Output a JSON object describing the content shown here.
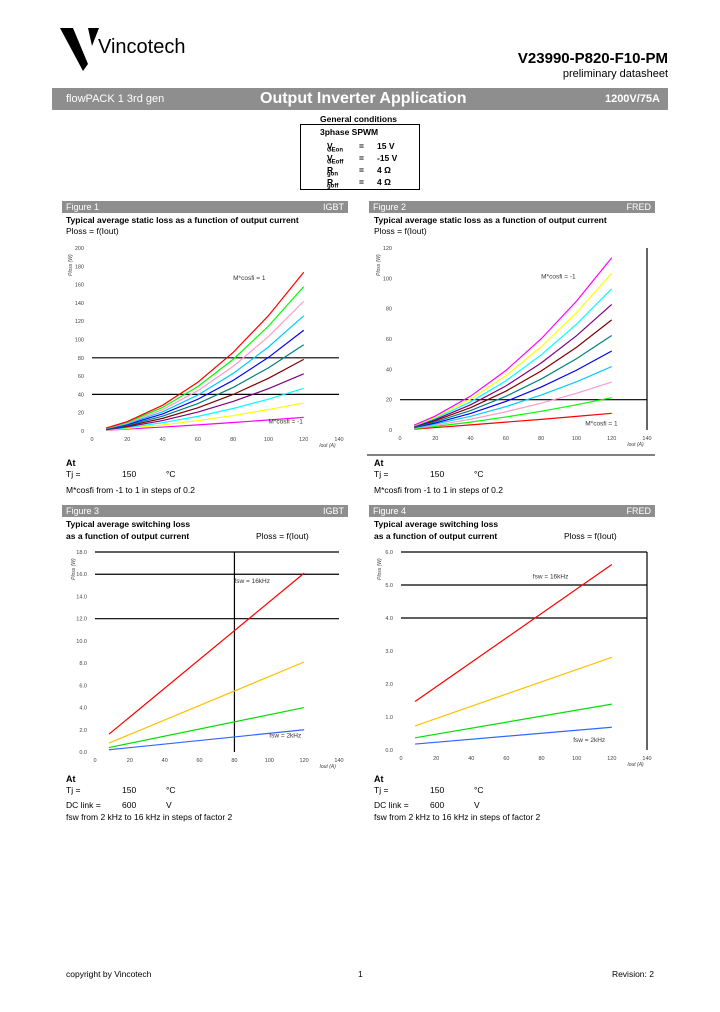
{
  "header": {
    "company": "Vincotech",
    "part_number": "V23990-P820-F10-PM",
    "doc_status": "preliminary datasheet",
    "bar_left": "flowPACK 1 3rd gen",
    "bar_title": "Output Inverter Application",
    "bar_right": "1200V/75A"
  },
  "conditions": {
    "title": "General conditions",
    "mode": "3phase SPWM",
    "rows": [
      {
        "sym": "V",
        "sub": "GEon",
        "eq": "=",
        "val": "15 V"
      },
      {
        "sym": "V",
        "sub": "GEoff",
        "eq": "=",
        "val": "-15 V"
      },
      {
        "sym": "R",
        "sub": "gon",
        "eq": "=",
        "val": "4 Ω"
      },
      {
        "sym": "R",
        "sub": "goff",
        "eq": "=",
        "val": "4 Ω"
      }
    ]
  },
  "figures": [
    {
      "label": "Figure 1",
      "tag": "IGBT",
      "title1": "Typical average static loss as a function of output current",
      "title2": "",
      "formula": "Ploss = f(Iout)",
      "at": "At",
      "cond1_label": "Tj =",
      "cond1_val": "150",
      "cond1_unit": "°C",
      "cond2_label": "",
      "cond2_val": "",
      "cond2_unit": "",
      "note": "M*cosfi from -1 to 1 in steps of 0.2"
    },
    {
      "label": "Figure 2",
      "tag": "FRED",
      "title1": "Typical average static loss as a function of output current",
      "title2": "",
      "formula": "Ploss = f(Iout)",
      "at": "At",
      "cond1_label": "Tj =",
      "cond1_val": "150",
      "cond1_unit": "°C",
      "cond2_label": "",
      "cond2_val": "",
      "cond2_unit": "",
      "note": "M*cosfi from -1 to 1 in steps of 0.2"
    },
    {
      "label": "Figure 3",
      "tag": "IGBT",
      "title1": "Typical average switching loss",
      "title2": "as a function of output current",
      "formula": "Ploss = f(Iout)",
      "at": "At",
      "cond1_label": "Tj =",
      "cond1_val": "150",
      "cond1_unit": "°C",
      "cond2_label": "DC link =",
      "cond2_val": "600",
      "cond2_unit": "V",
      "note": "fsw from 2 kHz to 16 kHz in steps of factor 2"
    },
    {
      "label": "Figure 4",
      "tag": "FRED",
      "title1": "Typical average switching loss",
      "title2": "as a function of output current",
      "formula": "Ploss = f(Iout)",
      "at": "At",
      "cond1_label": "Tj =",
      "cond1_val": "150",
      "cond1_unit": "°C",
      "cond2_label": "DC link =",
      "cond2_val": "600",
      "cond2_unit": "V",
      "note": "fsw from 2 kHz to 16 kHz in steps of factor 2"
    }
  ],
  "chart_data": [
    {
      "type": "line",
      "xlabel": "Iout (A)",
      "ylabel": "Ploss (W)",
      "xlim": [
        0,
        140
      ],
      "ylim": [
        0,
        200
      ],
      "xticks": [
        "0",
        "20",
        "40",
        "60",
        "80",
        "100",
        "120",
        "140"
      ],
      "yticks": [
        "0",
        "20",
        "40",
        "60",
        "80",
        "100",
        "120",
        "140",
        "160",
        "180",
        "200"
      ],
      "reference_lines": {
        "h": [
          40,
          80
        ],
        "v": []
      },
      "annotations": [
        {
          "text": "M*cosfi = 1",
          "x": 80,
          "y": 165
        },
        {
          "text": "M*cosfi = -1",
          "x": 100,
          "y": 8
        }
      ],
      "x": [
        8,
        20,
        40,
        60,
        80,
        100,
        120
      ],
      "series": [
        {
          "color": "#ff00ff",
          "values": [
            0.8,
            2.1,
            4.3,
            6.7,
            9.3,
            12.0,
            14.9
          ]
        },
        {
          "color": "#ffff00",
          "values": [
            1.1,
            2.9,
            6.7,
            11.4,
            16.9,
            23.4,
            30.7
          ]
        },
        {
          "color": "#00ffff",
          "values": [
            1.3,
            3.7,
            9.1,
            16.0,
            24.6,
            34.8,
            46.6
          ]
        },
        {
          "color": "#800080",
          "values": [
            1.5,
            4.6,
            11.4,
            20.7,
            32.3,
            46.2,
            62.5
          ]
        },
        {
          "color": "#800000",
          "values": [
            1.8,
            5.4,
            13.8,
            25.3,
            39.9,
            57.6,
            78.3
          ]
        },
        {
          "color": "#008080",
          "values": [
            2.0,
            6.2,
            16.2,
            30.0,
            47.6,
            69.0,
            94.2
          ]
        },
        {
          "color": "#0000ff",
          "values": [
            2.3,
            7.0,
            18.6,
            34.7,
            55.3,
            80.4,
            110.1
          ]
        },
        {
          "color": "#00ccff",
          "values": [
            2.5,
            7.9,
            21.0,
            39.3,
            62.9,
            91.8,
            125.9
          ]
        },
        {
          "color": "#ff99cc",
          "values": [
            2.8,
            8.7,
            23.3,
            44.0,
            70.6,
            103.2,
            141.8
          ]
        },
        {
          "color": "#00ff00",
          "values": [
            3.0,
            9.5,
            25.7,
            48.6,
            78.3,
            114.6,
            157.7
          ]
        },
        {
          "color": "#ff0000",
          "values": [
            3.2,
            10.3,
            28.1,
            53.3,
            85.9,
            126.0,
            173.5
          ]
        }
      ]
    },
    {
      "type": "line",
      "xlabel": "Iout (A)",
      "ylabel": "Ploss (W)",
      "xlim": [
        0,
        140
      ],
      "ylim": [
        0,
        120
      ],
      "xticks": [
        "0",
        "20",
        "40",
        "60",
        "80",
        "100",
        "120",
        "140"
      ],
      "yticks": [
        "0",
        "20",
        "40",
        "60",
        "80",
        "100",
        "120"
      ],
      "reference_lines": {
        "h": [
          20
        ],
        "v": [
          140
        ]
      },
      "annotations": [
        {
          "text": "M*cosfi = -1",
          "x": 80,
          "y": 100
        },
        {
          "text": "M*cosfi = 1",
          "x": 105,
          "y": 3
        }
      ],
      "x": [
        8,
        20,
        40,
        60,
        80,
        100,
        120
      ],
      "series": [
        {
          "color": "#ff0000",
          "values": [
            0.6,
            1.6,
            3.4,
            5.2,
            7.0,
            9.0,
            11.0
          ]
        },
        {
          "color": "#00ff00",
          "values": [
            0.9,
            2.4,
            5.2,
            8.6,
            12.3,
            16.6,
            21.3
          ]
        },
        {
          "color": "#ff99cc",
          "values": [
            1.2,
            3.1,
            7.1,
            12.0,
            17.7,
            24.2,
            31.6
          ]
        },
        {
          "color": "#00ccff",
          "values": [
            1.4,
            3.9,
            9.0,
            15.4,
            23.0,
            31.8,
            41.8
          ]
        },
        {
          "color": "#0000ff",
          "values": [
            1.7,
            4.6,
            10.9,
            18.8,
            28.3,
            39.4,
            52.1
          ]
        },
        {
          "color": "#008080",
          "values": [
            1.9,
            5.4,
            12.8,
            22.2,
            33.6,
            47.0,
            62.3
          ]
        },
        {
          "color": "#800000",
          "values": [
            2.2,
            6.2,
            14.7,
            25.6,
            38.9,
            54.5,
            72.6
          ]
        },
        {
          "color": "#800080",
          "values": [
            2.4,
            6.9,
            16.6,
            29.0,
            44.2,
            62.1,
            82.8
          ]
        },
        {
          "color": "#00ffff",
          "values": [
            2.7,
            7.7,
            18.5,
            32.4,
            49.5,
            69.7,
            93.1
          ]
        },
        {
          "color": "#ffff00",
          "values": [
            2.9,
            8.4,
            20.4,
            35.8,
            54.8,
            77.3,
            103.3
          ]
        },
        {
          "color": "#ff00ff",
          "values": [
            3.2,
            9.2,
            22.3,
            39.2,
            60.1,
            84.9,
            113.6
          ]
        }
      ]
    },
    {
      "type": "line",
      "xlabel": "Iout (A)",
      "ylabel": "Ploss (W)",
      "xlim": [
        0,
        140
      ],
      "ylim": [
        0,
        18
      ],
      "xticks": [
        "0",
        "20",
        "40",
        "60",
        "80",
        "100",
        "120",
        "140"
      ],
      "yticks": [
        "0.0",
        "2.0",
        "4.0",
        "6.0",
        "8.0",
        "10.0",
        "12.0",
        "14.0",
        "16.0",
        "18.0"
      ],
      "reference_lines": {
        "h": [
          12,
          16,
          18
        ],
        "v": [
          80
        ]
      },
      "annotations": [
        {
          "text": "fsw = 16kHz",
          "x": 80,
          "y": 15.2
        },
        {
          "text": "fsw = 2kHz",
          "x": 100,
          "y": 1.3
        }
      ],
      "x": [
        8,
        120
      ],
      "series": [
        {
          "color": "#ff0000",
          "values": [
            1.6,
            16.1
          ]
        },
        {
          "color": "#ffc000",
          "values": [
            0.8,
            8.1
          ]
        },
        {
          "color": "#00e000",
          "values": [
            0.4,
            4.0
          ]
        },
        {
          "color": "#3366ff",
          "values": [
            0.2,
            2.0
          ]
        }
      ]
    },
    {
      "type": "line",
      "xlabel": "Iout (A)",
      "ylabel": "Ploss (W)",
      "xlim": [
        0,
        140
      ],
      "ylim": [
        0,
        6
      ],
      "xticks": [
        "0",
        "20",
        "40",
        "60",
        "80",
        "100",
        "120",
        "140"
      ],
      "yticks": [
        "0.0",
        "1.0",
        "2.0",
        "3.0",
        "4.0",
        "5.0",
        "6.0"
      ],
      "reference_lines": {
        "h": [
          4,
          5,
          6
        ],
        "v": [
          140
        ]
      },
      "annotations": [
        {
          "text": "fsw = 16kHz",
          "x": 75,
          "y": 5.2
        },
        {
          "text": "fsw = 2kHz",
          "x": 98,
          "y": 0.25
        }
      ],
      "x": [
        8,
        120
      ],
      "series": [
        {
          "color": "#ff0000",
          "values": [
            1.47,
            5.62
          ]
        },
        {
          "color": "#ffc000",
          "values": [
            0.73,
            2.81
          ]
        },
        {
          "color": "#00e000",
          "values": [
            0.37,
            1.39
          ]
        },
        {
          "color": "#3366ff",
          "values": [
            0.18,
            0.69
          ]
        }
      ]
    }
  ],
  "footer": {
    "copyright": "copyright by Vincotech",
    "page": "1",
    "revision": "Revision: 2"
  }
}
